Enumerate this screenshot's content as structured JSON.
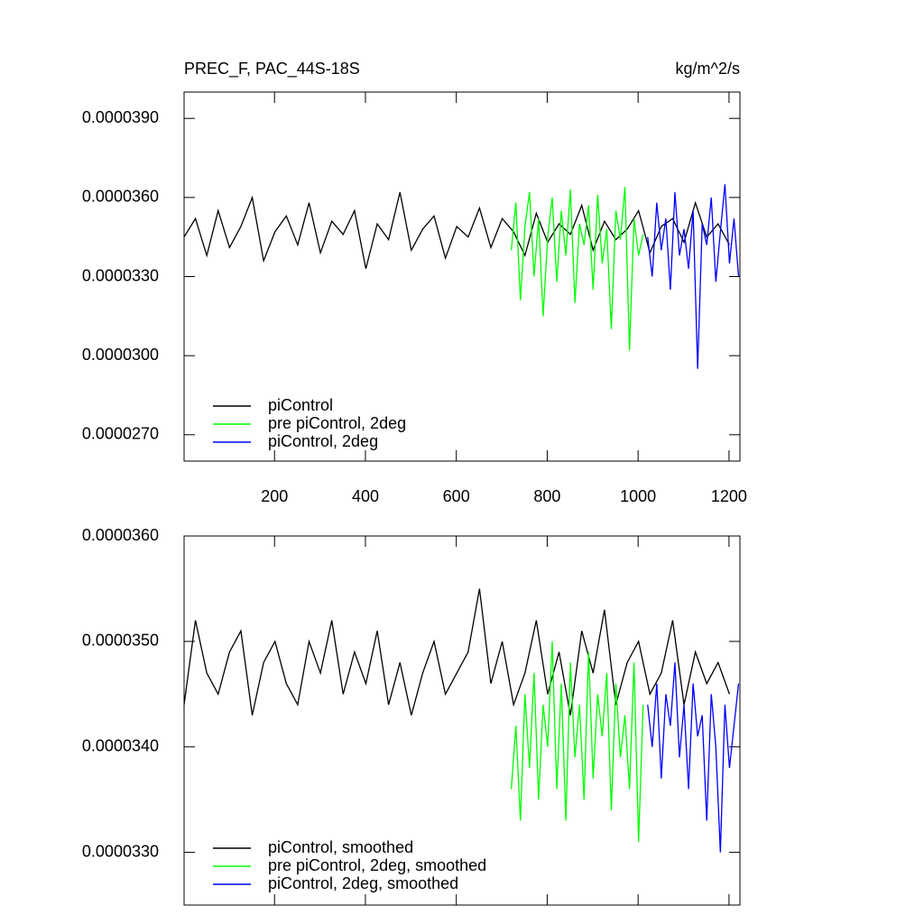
{
  "chart_data": [
    {
      "type": "line",
      "title": "PREC_F, PAC_44S-18S",
      "units": "kg/m^2/s",
      "xlim": [
        1,
        1224
      ],
      "xticks": [
        200,
        400,
        600,
        800,
        1000,
        1200
      ],
      "ylim": [
        2.6e-05,
        4e-05
      ],
      "yticks": [
        {
          "value": 2.7e-05,
          "label": "0.0000270"
        },
        {
          "value": 3e-05,
          "label": "0.0000300"
        },
        {
          "value": 3.3e-05,
          "label": "0.0000330"
        },
        {
          "value": 3.6e-05,
          "label": "0.0000360"
        },
        {
          "value": 3.9e-05,
          "label": "0.0000390"
        }
      ],
      "series": [
        {
          "name": "piControl",
          "color": "#000000",
          "x": [
            1,
            26,
            51,
            76,
            101,
            126,
            151,
            176,
            201,
            226,
            251,
            276,
            301,
            326,
            351,
            376,
            401,
            426,
            451,
            476,
            501,
            526,
            551,
            576,
            601,
            626,
            651,
            676,
            701,
            726,
            751,
            776,
            801,
            826,
            851,
            876,
            901,
            926,
            951,
            976,
            1001,
            1026,
            1051,
            1076,
            1101,
            1126,
            1151,
            1176,
            1201
          ],
          "values": [
            3.45e-05,
            3.52e-05,
            3.38e-05,
            3.55e-05,
            3.41e-05,
            3.49e-05,
            3.6e-05,
            3.36e-05,
            3.47e-05,
            3.53e-05,
            3.42e-05,
            3.58e-05,
            3.39e-05,
            3.51e-05,
            3.46e-05,
            3.55e-05,
            3.33e-05,
            3.5e-05,
            3.44e-05,
            3.62e-05,
            3.4e-05,
            3.48e-05,
            3.53e-05,
            3.37e-05,
            3.49e-05,
            3.45e-05,
            3.56e-05,
            3.41e-05,
            3.52e-05,
            3.47e-05,
            3.38e-05,
            3.54e-05,
            3.43e-05,
            3.5e-05,
            3.46e-05,
            3.57e-05,
            3.4e-05,
            3.51e-05,
            3.44e-05,
            3.48e-05,
            3.55e-05,
            3.39e-05,
            3.49e-05,
            3.52e-05,
            3.43e-05,
            3.58e-05,
            3.45e-05,
            3.5e-05,
            3.42e-05
          ]
        },
        {
          "name": "pre piControl, 2deg",
          "color": "#00ff00",
          "x": [
            721,
            731,
            741,
            751,
            761,
            771,
            781,
            791,
            801,
            811,
            821,
            831,
            841,
            851,
            861,
            871,
            881,
            891,
            901,
            911,
            921,
            931,
            941,
            951,
            961,
            971,
            981,
            991,
            1001,
            1011
          ],
          "values": [
            3.4e-05,
            3.58e-05,
            3.21e-05,
            3.49e-05,
            3.62e-05,
            3.3e-05,
            3.52e-05,
            3.15e-05,
            3.45e-05,
            3.6e-05,
            3.28e-05,
            3.55e-05,
            3.38e-05,
            3.63e-05,
            3.2e-05,
            3.5e-05,
            3.42e-05,
            3.57e-05,
            3.25e-05,
            3.61e-05,
            3.35e-05,
            3.48e-05,
            3.1e-05,
            3.55e-05,
            3.44e-05,
            3.64e-05,
            3.02e-05,
            3.52e-05,
            3.38e-05,
            3.46e-05
          ]
        },
        {
          "name": "piControl, 2deg",
          "color": "#0000ff",
          "x": [
            1021,
            1031,
            1041,
            1051,
            1061,
            1071,
            1081,
            1091,
            1101,
            1111,
            1121,
            1131,
            1141,
            1151,
            1161,
            1171,
            1181,
            1191,
            1201,
            1211,
            1221
          ],
          "values": [
            3.45e-05,
            3.3e-05,
            3.58e-05,
            3.4e-05,
            3.52e-05,
            3.25e-05,
            3.62e-05,
            3.38e-05,
            3.48e-05,
            3.33e-05,
            3.55e-05,
            2.95e-05,
            3.5e-05,
            3.42e-05,
            3.6e-05,
            3.28e-05,
            3.47e-05,
            3.65e-05,
            3.35e-05,
            3.52e-05,
            3.3e-05
          ]
        }
      ]
    },
    {
      "type": "line",
      "xlim": [
        1,
        1224
      ],
      "ylim": [
        3.25e-05,
        3.6e-05
      ],
      "yticks": [
        {
          "value": 3.3e-05,
          "label": "0.0000330"
        },
        {
          "value": 3.4e-05,
          "label": "0.0000340"
        },
        {
          "value": 3.5e-05,
          "label": "0.0000350"
        },
        {
          "value": 3.6e-05,
          "label": "0.0000360"
        }
      ],
      "series": [
        {
          "name": "piControl, smoothed",
          "color": "#000000",
          "x": [
            1,
            26,
            51,
            76,
            101,
            126,
            151,
            176,
            201,
            226,
            251,
            276,
            301,
            326,
            351,
            376,
            401,
            426,
            451,
            476,
            501,
            526,
            551,
            576,
            601,
            626,
            651,
            676,
            701,
            726,
            751,
            776,
            801,
            826,
            851,
            876,
            901,
            926,
            951,
            976,
            1001,
            1026,
            1051,
            1076,
            1101,
            1126,
            1151,
            1176,
            1201
          ],
          "values": [
            3.44e-05,
            3.52e-05,
            3.47e-05,
            3.45e-05,
            3.49e-05,
            3.51e-05,
            3.43e-05,
            3.48e-05,
            3.5e-05,
            3.46e-05,
            3.44e-05,
            3.5e-05,
            3.47e-05,
            3.52e-05,
            3.45e-05,
            3.49e-05,
            3.46e-05,
            3.51e-05,
            3.44e-05,
            3.48e-05,
            3.43e-05,
            3.47e-05,
            3.5e-05,
            3.45e-05,
            3.47e-05,
            3.49e-05,
            3.55e-05,
            3.46e-05,
            3.5e-05,
            3.44e-05,
            3.47e-05,
            3.52e-05,
            3.45e-05,
            3.49e-05,
            3.43e-05,
            3.51e-05,
            3.47e-05,
            3.53e-05,
            3.44e-05,
            3.48e-05,
            3.5e-05,
            3.45e-05,
            3.47e-05,
            3.52e-05,
            3.44e-05,
            3.49e-05,
            3.46e-05,
            3.48e-05,
            3.45e-05
          ]
        },
        {
          "name": "pre piControl, 2deg, smoothed",
          "color": "#00ff00",
          "x": [
            721,
            731,
            741,
            751,
            761,
            771,
            781,
            791,
            801,
            811,
            821,
            831,
            841,
            851,
            861,
            871,
            881,
            891,
            901,
            911,
            921,
            931,
            941,
            951,
            961,
            971,
            981,
            991,
            1001,
            1011
          ],
          "values": [
            3.36e-05,
            3.42e-05,
            3.33e-05,
            3.45e-05,
            3.38e-05,
            3.47e-05,
            3.35e-05,
            3.44e-05,
            3.4e-05,
            3.5e-05,
            3.36e-05,
            3.46e-05,
            3.33e-05,
            3.48e-05,
            3.39e-05,
            3.44e-05,
            3.35e-05,
            3.49e-05,
            3.37e-05,
            3.45e-05,
            3.41e-05,
            3.47e-05,
            3.34e-05,
            3.46e-05,
            3.39e-05,
            3.43e-05,
            3.36e-05,
            3.48e-05,
            3.31e-05,
            3.44e-05
          ]
        },
        {
          "name": "piControl, 2deg, smoothed",
          "color": "#0000ff",
          "x": [
            1021,
            1031,
            1041,
            1051,
            1061,
            1071,
            1081,
            1091,
            1101,
            1111,
            1121,
            1131,
            1141,
            1151,
            1161,
            1171,
            1181,
            1191,
            1201,
            1211,
            1221
          ],
          "values": [
            3.44e-05,
            3.4e-05,
            3.46e-05,
            3.37e-05,
            3.45e-05,
            3.42e-05,
            3.48e-05,
            3.39e-05,
            3.44e-05,
            3.36e-05,
            3.46e-05,
            3.41e-05,
            3.43e-05,
            3.33e-05,
            3.45e-05,
            3.4e-05,
            3.3e-05,
            3.44e-05,
            3.38e-05,
            3.42e-05,
            3.46e-05
          ]
        }
      ]
    }
  ]
}
